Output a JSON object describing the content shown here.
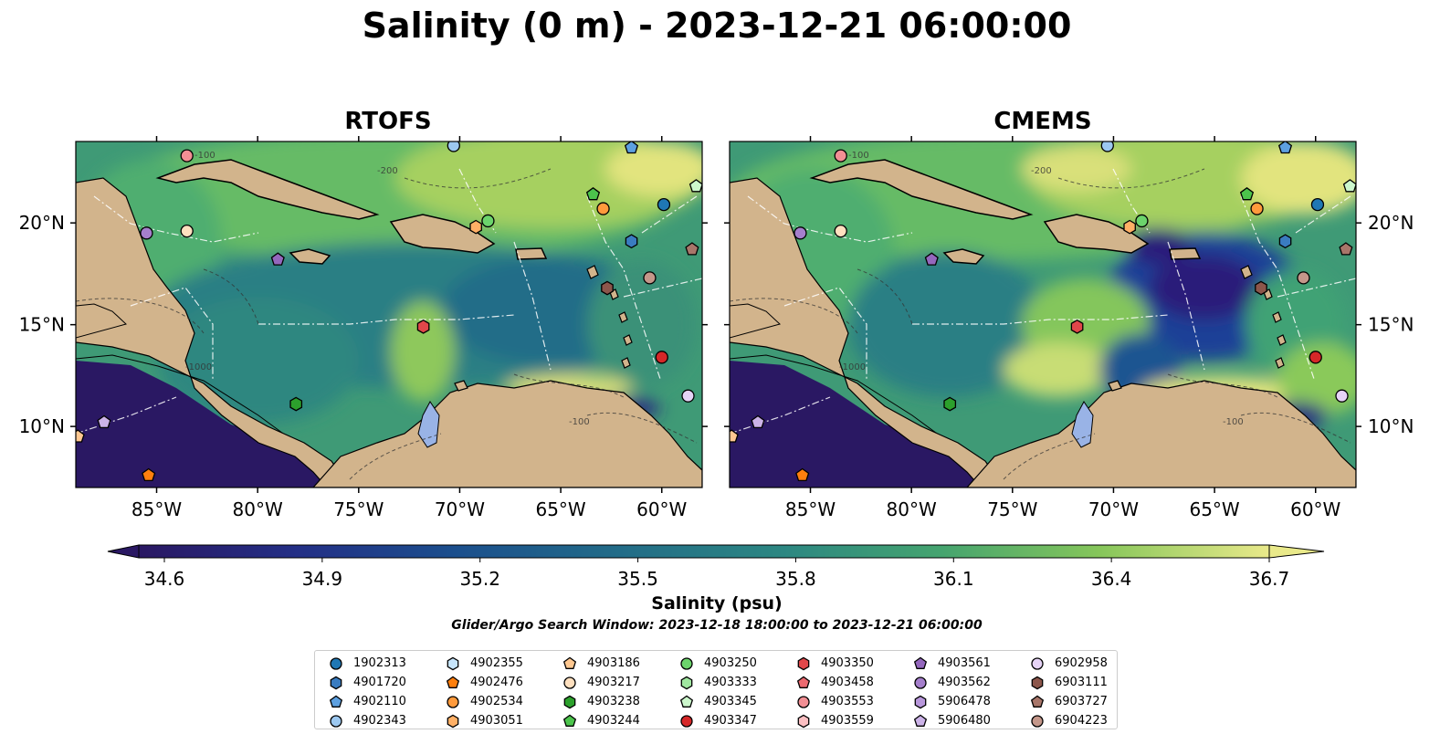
{
  "title": "Salinity (0 m) - 2023-12-21 06:00:00",
  "panels": [
    {
      "title": "RTOFS"
    },
    {
      "title": "CMEMS"
    }
  ],
  "axes": {
    "lon_ticks": [
      "85°W",
      "80°W",
      "75°W",
      "70°W",
      "65°W",
      "60°W"
    ],
    "lat_ticks": [
      "20°N",
      "15°N",
      "10°N"
    ]
  },
  "contour_labels": [
    "-100",
    "-1000",
    "-200"
  ],
  "colorbar": {
    "label": "Salinity (psu)",
    "ticks": [
      "34.6",
      "34.9",
      "35.2",
      "35.5",
      "35.8",
      "36.1",
      "36.4",
      "36.7"
    ],
    "vmin": 34.6,
    "vmax": 36.7,
    "colormap": [
      "#2a1863",
      "#1e3a8f",
      "#1a5c8a",
      "#267a86",
      "#2f927f",
      "#4aab6d",
      "#8ac95a",
      "#e9e98a"
    ]
  },
  "search_window": "Glider/Argo Search Window: 2023-12-18 18:00:00 to 2023-12-21 06:00:00",
  "colors": {
    "land": "#d2b48c",
    "lake": "#99b3e6",
    "deep_pacific": "#2a1863"
  },
  "legend": [
    {
      "id": "1902313",
      "shape": "circle",
      "color": "#1f77b4"
    },
    {
      "id": "4901720",
      "shape": "hexagon",
      "color": "#3a7cc0"
    },
    {
      "id": "4902110",
      "shape": "pentagon",
      "color": "#5da0e0"
    },
    {
      "id": "4902343",
      "shape": "circle",
      "color": "#9cc8f0"
    },
    {
      "id": "4902355",
      "shape": "hexagon",
      "color": "#c6e4fa"
    },
    {
      "id": "4902476",
      "shape": "pentagon",
      "color": "#ff7f0e"
    },
    {
      "id": "4902534",
      "shape": "circle",
      "color": "#ff9a3c"
    },
    {
      "id": "4903051",
      "shape": "hexagon",
      "color": "#ffb066"
    },
    {
      "id": "4903186",
      "shape": "pentagon",
      "color": "#ffc891"
    },
    {
      "id": "4903217",
      "shape": "circle",
      "color": "#ffe0bf"
    },
    {
      "id": "4903238",
      "shape": "hexagon",
      "color": "#2ca02c"
    },
    {
      "id": "4903244",
      "shape": "pentagon",
      "color": "#4cc44c"
    },
    {
      "id": "4903250",
      "shape": "circle",
      "color": "#6cd46c"
    },
    {
      "id": "4903333",
      "shape": "hexagon",
      "color": "#a0e6a0"
    },
    {
      "id": "4903345",
      "shape": "pentagon",
      "color": "#ccf7cc"
    },
    {
      "id": "4903347",
      "shape": "circle",
      "color": "#d62728"
    },
    {
      "id": "4903350",
      "shape": "hexagon",
      "color": "#e0474a"
    },
    {
      "id": "4903458",
      "shape": "pentagon",
      "color": "#ec6a70"
    },
    {
      "id": "4903553",
      "shape": "circle",
      "color": "#f28f94"
    },
    {
      "id": "4903559",
      "shape": "hexagon",
      "color": "#fbbfc2"
    },
    {
      "id": "4903561",
      "shape": "pentagon",
      "color": "#9467bd"
    },
    {
      "id": "4903562",
      "shape": "circle",
      "color": "#a57fcc"
    },
    {
      "id": "5906478",
      "shape": "hexagon",
      "color": "#b897db"
    },
    {
      "id": "5906480",
      "shape": "pentagon",
      "color": "#ccb3e8"
    },
    {
      "id": "6902958",
      "shape": "circle",
      "color": "#e6d3f6"
    },
    {
      "id": "6903111",
      "shape": "hexagon",
      "color": "#8c564b"
    },
    {
      "id": "6903727",
      "shape": "pentagon",
      "color": "#a8766a"
    },
    {
      "id": "6904223",
      "shape": "circle",
      "color": "#c4978a"
    }
  ],
  "map_markers": [
    {
      "id": "1902313",
      "lon": -59.9,
      "lat": 20.9
    },
    {
      "id": "4901720",
      "lon": -61.5,
      "lat": 19.1
    },
    {
      "id": "4902110",
      "lon": -61.5,
      "lat": 23.7
    },
    {
      "id": "4902343",
      "lon": -70.3,
      "lat": 23.8
    },
    {
      "id": "4902476",
      "lon": -85.4,
      "lat": 7.6
    },
    {
      "id": "4902534",
      "lon": -62.9,
      "lat": 20.7
    },
    {
      "id": "4903051",
      "lon": -69.2,
      "lat": 19.8
    },
    {
      "id": "4903186",
      "lon": -88.9,
      "lat": 9.5
    },
    {
      "id": "4903217",
      "lon": -83.5,
      "lat": 19.6
    },
    {
      "id": "4903238",
      "lon": -78.1,
      "lat": 11.1
    },
    {
      "id": "4903244",
      "lon": -63.4,
      "lat": 21.4
    },
    {
      "id": "4903250",
      "lon": -68.6,
      "lat": 20.1
    },
    {
      "id": "4903345",
      "lon": -58.3,
      "lat": 21.8
    },
    {
      "id": "4903347",
      "lon": -60.0,
      "lat": 13.4
    },
    {
      "id": "4903350",
      "lon": -71.8,
      "lat": 14.9
    },
    {
      "id": "4903553",
      "lon": -83.5,
      "lat": 23.3
    },
    {
      "id": "4903561",
      "lon": -79.0,
      "lat": 18.2
    },
    {
      "id": "4903562",
      "lon": -85.5,
      "lat": 19.5
    },
    {
      "id": "5906480",
      "lon": -87.6,
      "lat": 10.2
    },
    {
      "id": "6902958",
      "lon": -58.7,
      "lat": 11.5
    },
    {
      "id": "6903111",
      "lon": -62.7,
      "lat": 16.8
    },
    {
      "id": "6904223",
      "lon": -60.6,
      "lat": 17.3
    },
    {
      "id": "6903727",
      "lon": -58.5,
      "lat": 18.7
    }
  ]
}
